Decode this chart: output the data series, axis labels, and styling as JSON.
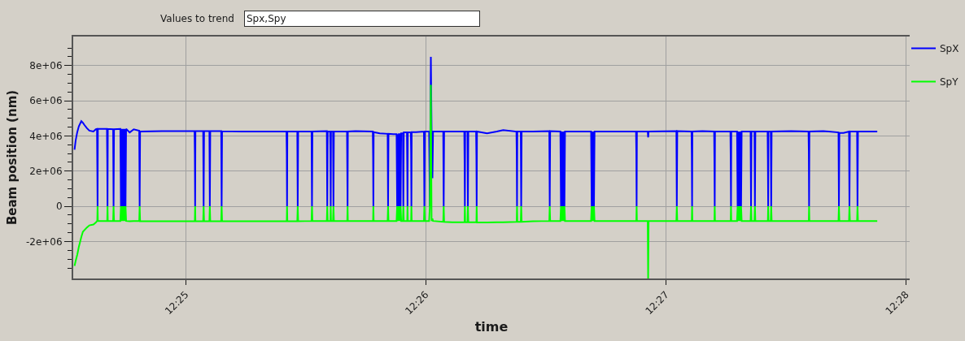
{
  "chart_data": {
    "type": "line",
    "annotations": [
      "Values to trend",
      "Spx,Spy"
    ],
    "xlabel": "time",
    "ylabel": "Beam position (nm)",
    "x": [
      12.40896,
      12.40904,
      12.40915,
      12.40926,
      12.40943,
      12.40954,
      12.40965,
      12.40982,
      12.40999,
      12.41027,
      12.41044,
      12.41052,
      12.41054,
      12.41056,
      12.41058,
      12.41121,
      12.41123,
      12.41125,
      12.41127,
      12.41164,
      12.41167,
      12.4117,
      12.41214,
      12.41218,
      12.41222,
      12.41226,
      12.4123,
      12.41234,
      12.41238,
      12.41242,
      12.41246,
      12.4125,
      12.41254,
      12.41279,
      12.41307,
      12.41345,
      12.41348,
      12.41351,
      12.41503,
      12.41729,
      12.41731,
      12.41733,
      12.41735,
      12.41789,
      12.41792,
      12.41795,
      12.41832,
      12.41835,
      12.41838,
      12.41914,
      12.41917,
      12.4192,
      12.42063,
      12.42367,
      12.42369,
      12.42371,
      12.42373,
      12.42442,
      12.42445,
      12.42448,
      12.42541,
      12.42544,
      12.42547,
      12.42647,
      12.4265,
      12.42653,
      12.4267,
      12.42672,
      12.42674,
      12.42676,
      12.4269,
      12.42693,
      12.42696,
      12.42787,
      12.42789,
      12.42791,
      12.42793,
      12.42846,
      12.42966,
      12.42968,
      12.4297,
      12.42972,
      12.43014,
      12.43069,
      12.43072,
      12.43075,
      12.43109,
      12.43131,
      12.43135,
      12.43139,
      12.43143,
      12.43147,
      12.43151,
      12.43155,
      12.43159,
      12.43163,
      12.43175,
      12.43178,
      12.43181,
      12.43203,
      12.43205,
      12.43207,
      12.43209,
      12.4323,
      12.43232,
      12.43234,
      12.43236,
      12.43266,
      12.43321,
      12.43324,
      12.43327,
      12.43357,
      12.43362,
      12.43369,
      12.43374,
      12.4338,
      12.43384,
      12.43455,
      12.43458,
      12.43461,
      12.43518,
      12.43601,
      12.43603,
      12.43605,
      12.43607,
      12.43623,
      12.43626,
      12.43629,
      12.43683,
      12.43685,
      12.43687,
      12.43689,
      12.43759,
      12.43826,
      12.43871,
      12.43963,
      12.43965,
      12.43967,
      12.43969,
      12.43993,
      12.43996,
      12.43999,
      12.44078,
      12.44191,
      12.44194,
      12.44197,
      12.44268,
      12.44272,
      12.44276,
      12.4428,
      12.44284,
      12.44288,
      12.44292,
      12.44296,
      12.443,
      12.44481,
      12.44485,
      12.44489,
      12.44493,
      12.44497,
      12.44501,
      12.44505,
      12.44638,
      12.44793,
      12.44795,
      12.44797,
      12.44799,
      12.44874,
      12.44877,
      12.4488,
      12.45073,
      12.45076,
      12.45079,
      12.45178,
      12.4518,
      12.45182,
      12.45184,
      12.45254,
      12.45335,
      12.45337,
      12.45339,
      12.45341,
      12.45448,
      12.4545,
      12.45452,
      12.45454,
      12.45494,
      12.45498,
      12.45502,
      12.45506,
      12.4551,
      12.45514,
      12.45518,
      12.45522,
      12.45526,
      12.45588,
      12.45591,
      12.45594,
      12.45615,
      12.45618,
      12.45621,
      12.45706,
      12.45708,
      12.4571,
      12.45712,
      12.45728,
      12.45731,
      12.45734,
      12.45869,
      12.4599,
      12.45992,
      12.45994,
      12.45996,
      12.46093,
      12.46198,
      12.46201,
      12.46204,
      12.46233,
      12.46271,
      12.46274,
      12.46277,
      12.46327,
      12.4633,
      12.46333,
      12.46467
    ],
    "series": [
      {
        "name": "SpX",
        "color": "#0000ff",
        "values": [
          3220000,
          3750000,
          4220000,
          4550000,
          4840000,
          4750000,
          4620000,
          4440000,
          4300000,
          4250000,
          4380000,
          4400000,
          2300000,
          0,
          4400000,
          4400000,
          2700000,
          0,
          4400000,
          4380000,
          0,
          4380000,
          4400000,
          0,
          4400000,
          0,
          4400000,
          0,
          4400000,
          0,
          4400000,
          0,
          4400000,
          4200000,
          4380000,
          4300000,
          0,
          4250000,
          4270000,
          4270000,
          3000000,
          0,
          4270000,
          4270000,
          0,
          4270000,
          4270000,
          0,
          4270000,
          4270000,
          0,
          4270000,
          4250000,
          4250000,
          3000000,
          0,
          4250000,
          4250000,
          0,
          4250000,
          4250000,
          0,
          4250000,
          4270000,
          0,
          4250000,
          4250000,
          3050000,
          0,
          4250000,
          4250000,
          0,
          4250000,
          4250000,
          2150000,
          0,
          4250000,
          4270000,
          4250000,
          2900000,
          0,
          4220000,
          4150000,
          4120000,
          0,
          4120000,
          4100000,
          4100000,
          0,
          4100000,
          0,
          4150000,
          0,
          4150000,
          0,
          4150000,
          4150000,
          0,
          4200000,
          4200000,
          2400000,
          0,
          4200000,
          4200000,
          3050000,
          0,
          4220000,
          4220000,
          4250000,
          0,
          4250000,
          4250000,
          0,
          8500000,
          4250000,
          1600000,
          4250000,
          4250000,
          0,
          4250000,
          4250000,
          4250000,
          2650000,
          0,
          4250000,
          4250000,
          0,
          4250000,
          4250000,
          2870000,
          0,
          4250000,
          4150000,
          4250000,
          4330000,
          4250000,
          2900000,
          0,
          4250000,
          4250000,
          0,
          4250000,
          4250000,
          4270000,
          0,
          4270000,
          4250000,
          0,
          4250000,
          0,
          4250000,
          0,
          4250000,
          0,
          4250000,
          4250000,
          0,
          4250000,
          0,
          4250000,
          0,
          4250000,
          4250000,
          4250000,
          3070000,
          0,
          4250000,
          4250000,
          3920000,
          4250000,
          4270000,
          0,
          4270000,
          4250000,
          2960000,
          0,
          4250000,
          4270000,
          4250000,
          2560000,
          0,
          4250000,
          4250000,
          2650000,
          0,
          4250000,
          4250000,
          0,
          4250000,
          0,
          4250000,
          0,
          4250000,
          0,
          4250000,
          4250000,
          0,
          4250000,
          4250000,
          0,
          4250000,
          4250000,
          2650000,
          0,
          4250000,
          4250000,
          0,
          4250000,
          4270000,
          4250000,
          3100000,
          0,
          4250000,
          4280000,
          4200000,
          0,
          4180000,
          4170000,
          4250000,
          0,
          4250000,
          4250000,
          0,
          4250000,
          4250000
        ]
      },
      {
        "name": "SpY",
        "color": "#00ff00",
        "values": [
          -3380000,
          -3100000,
          -2750000,
          -2300000,
          -1750000,
          -1450000,
          -1350000,
          -1200000,
          -1080000,
          -1030000,
          -920000,
          -830000,
          -830000,
          0,
          -830000,
          -830000,
          -830000,
          0,
          -830000,
          -830000,
          0,
          -830000,
          -830000,
          0,
          -830000,
          0,
          -830000,
          0,
          -830000,
          0,
          -830000,
          0,
          -830000,
          -850000,
          -830000,
          -830000,
          0,
          -850000,
          -850000,
          -850000,
          -850000,
          0,
          -850000,
          -850000,
          0,
          -850000,
          -850000,
          0,
          -850000,
          -850000,
          0,
          -850000,
          -850000,
          -850000,
          -850000,
          0,
          -850000,
          -850000,
          0,
          -850000,
          -830000,
          0,
          -830000,
          -830000,
          0,
          -830000,
          -830000,
          -830000,
          0,
          -830000,
          -830000,
          0,
          -830000,
          -830000,
          -830000,
          0,
          -830000,
          -830000,
          -830000,
          -830000,
          0,
          -830000,
          -830000,
          -830000,
          0,
          -830000,
          -830000,
          -830000,
          0,
          -830000,
          0,
          -830000,
          0,
          -830000,
          0,
          -830000,
          -830000,
          0,
          -830000,
          -830000,
          -830000,
          0,
          -830000,
          -830000,
          -830000,
          0,
          -830000,
          -830000,
          -830000,
          0,
          -830000,
          -830000,
          0,
          6900000,
          -830000,
          -700000,
          -830000,
          -880000,
          0,
          -880000,
          -900000,
          -900000,
          -900000,
          0,
          -900000,
          -900000,
          0,
          -900000,
          -900000,
          -900000,
          0,
          -920000,
          -920000,
          -900000,
          -900000,
          -880000,
          -880000,
          0,
          -880000,
          -880000,
          0,
          -880000,
          -850000,
          -830000,
          0,
          -830000,
          -830000,
          0,
          -830000,
          0,
          -830000,
          0,
          -830000,
          0,
          -830000,
          -830000,
          0,
          -830000,
          0,
          -830000,
          0,
          -830000,
          -830000,
          -830000,
          -830000,
          0,
          -830000,
          -830000,
          -4100000,
          -830000,
          -830000,
          0,
          -830000,
          -830000,
          -830000,
          0,
          -830000,
          -830000,
          -830000,
          -830000,
          0,
          -830000,
          -830000,
          -830000,
          0,
          -830000,
          -830000,
          0,
          -830000,
          0,
          -830000,
          0,
          -830000,
          0,
          -830000,
          -830000,
          0,
          -830000,
          -830000,
          0,
          -830000,
          -830000,
          -830000,
          0,
          -830000,
          -830000,
          0,
          -830000,
          -830000,
          -830000,
          -830000,
          0,
          -830000,
          -830000,
          -830000,
          0,
          -830000,
          -830000,
          -830000,
          0,
          -830000,
          -830000,
          0,
          -830000,
          -830000
        ]
      }
    ],
    "xlim": [
      12.40887,
      12.46692
    ],
    "xticks": [
      {
        "value": 12.416667,
        "label": "12:25"
      },
      {
        "value": 12.433333,
        "label": "12:26"
      },
      {
        "value": 12.45,
        "label": "12:27"
      },
      {
        "value": 12.466667,
        "label": "12:28"
      }
    ],
    "ylim": [
      -4100000,
      9650000
    ],
    "yticks": [
      {
        "value": -3500000,
        "label": null
      },
      {
        "value": -3000000,
        "label": null
      },
      {
        "value": -2500000,
        "label": null
      },
      {
        "value": -2000000,
        "label": "-2e+06"
      },
      {
        "value": -1500000,
        "label": null
      },
      {
        "value": -1000000,
        "label": null
      },
      {
        "value": -500000,
        "label": null
      },
      0,
      {
        "value": 500000,
        "label": null
      },
      {
        "value": 1000000,
        "label": null
      },
      {
        "value": 1500000,
        "label": null
      },
      {
        "value": 2000000,
        "label": "2e+06"
      },
      {
        "value": 2500000,
        "label": null
      },
      {
        "value": 3000000,
        "label": null
      },
      {
        "value": 3500000,
        "label": null
      },
      {
        "value": 4000000,
        "label": "4e+06"
      },
      {
        "value": 4500000,
        "label": null
      },
      {
        "value": 5000000,
        "label": null
      },
      {
        "value": 5500000,
        "label": null
      },
      {
        "value": 6000000,
        "label": "6e+06"
      },
      {
        "value": 6500000,
        "label": null
      },
      {
        "value": 7000000,
        "label": null
      },
      {
        "value": 7500000,
        "label": null
      },
      {
        "value": 8000000,
        "label": "8e+06"
      },
      {
        "value": 8500000,
        "label": null
      },
      {
        "value": 9000000,
        "label": null
      }
    ],
    "grid": true,
    "legend": "top right",
    "line_style": "solid"
  }
}
